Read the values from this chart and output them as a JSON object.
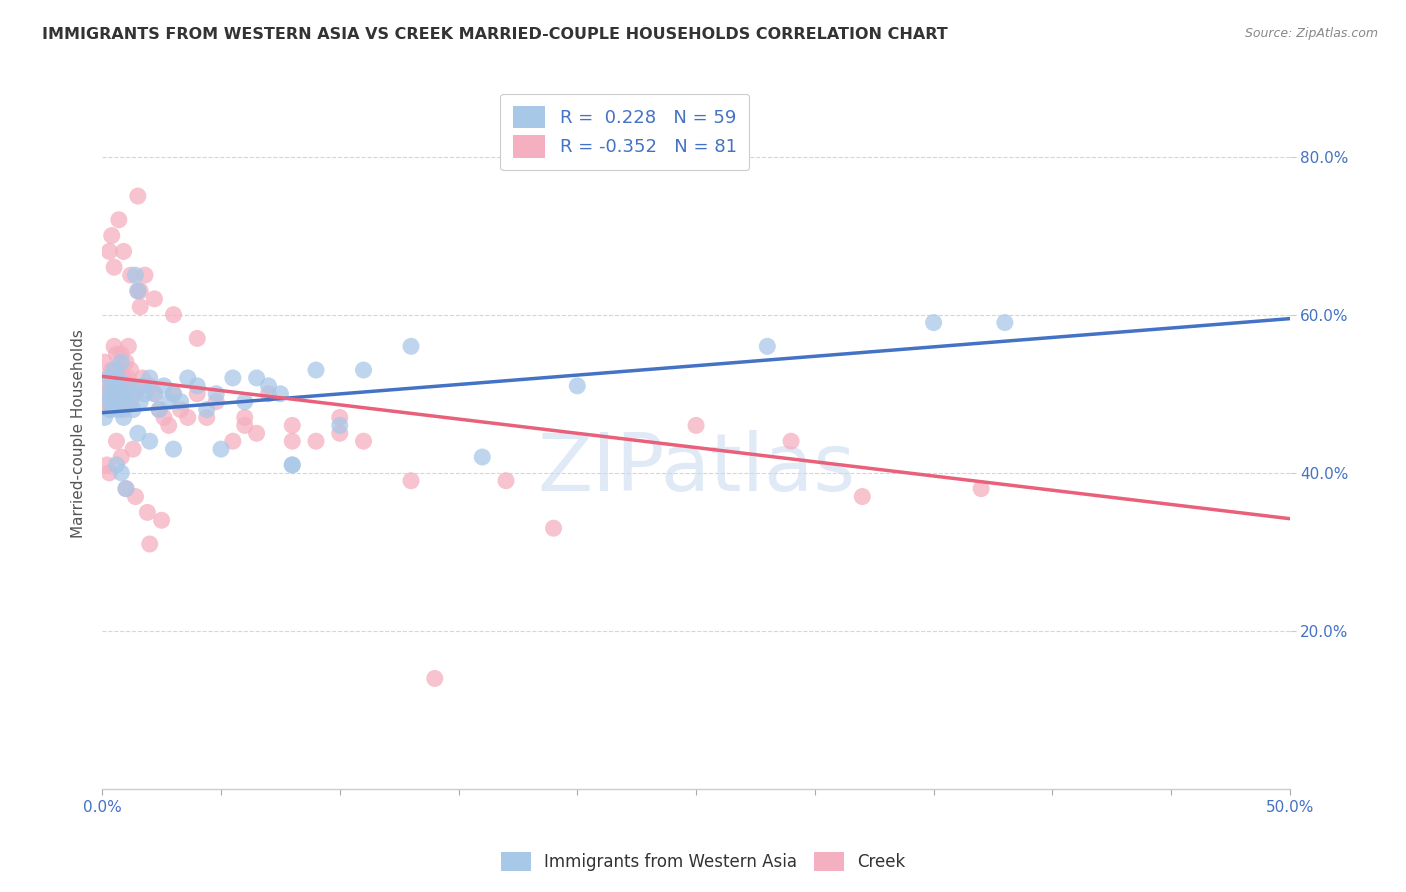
{
  "title": "IMMIGRANTS FROM WESTERN ASIA VS CREEK MARRIED-COUPLE HOUSEHOLDS CORRELATION CHART",
  "source": "Source: ZipAtlas.com",
  "ylabel": "Married-couple Households",
  "legend_r_n": [
    {
      "R": " 0.228",
      "N": "59"
    },
    {
      "R": "-0.352",
      "N": "81"
    }
  ],
  "blue_scatter_x": [
    0.001,
    0.002,
    0.003,
    0.003,
    0.004,
    0.004,
    0.005,
    0.005,
    0.006,
    0.006,
    0.007,
    0.007,
    0.008,
    0.008,
    0.009,
    0.01,
    0.01,
    0.011,
    0.012,
    0.013,
    0.014,
    0.015,
    0.016,
    0.017,
    0.018,
    0.02,
    0.022,
    0.024,
    0.026,
    0.028,
    0.03,
    0.033,
    0.036,
    0.04,
    0.044,
    0.048,
    0.055,
    0.06,
    0.065,
    0.07,
    0.075,
    0.08,
    0.09,
    0.1,
    0.11,
    0.13,
    0.16,
    0.2,
    0.28,
    0.35,
    0.006,
    0.008,
    0.01,
    0.015,
    0.02,
    0.03,
    0.05,
    0.08,
    0.38
  ],
  "blue_scatter_y": [
    0.47,
    0.5,
    0.49,
    0.52,
    0.51,
    0.48,
    0.5,
    0.53,
    0.49,
    0.51,
    0.48,
    0.52,
    0.5,
    0.54,
    0.47,
    0.5,
    0.49,
    0.51,
    0.5,
    0.48,
    0.65,
    0.63,
    0.49,
    0.51,
    0.5,
    0.52,
    0.5,
    0.48,
    0.51,
    0.49,
    0.5,
    0.49,
    0.52,
    0.51,
    0.48,
    0.5,
    0.52,
    0.49,
    0.52,
    0.51,
    0.5,
    0.41,
    0.53,
    0.46,
    0.53,
    0.56,
    0.42,
    0.51,
    0.56,
    0.59,
    0.41,
    0.4,
    0.38,
    0.45,
    0.44,
    0.43,
    0.43,
    0.41,
    0.59
  ],
  "pink_scatter_x": [
    0.001,
    0.001,
    0.002,
    0.002,
    0.003,
    0.003,
    0.004,
    0.004,
    0.005,
    0.005,
    0.006,
    0.006,
    0.007,
    0.007,
    0.008,
    0.008,
    0.009,
    0.009,
    0.01,
    0.01,
    0.011,
    0.011,
    0.012,
    0.012,
    0.013,
    0.014,
    0.015,
    0.016,
    0.017,
    0.018,
    0.02,
    0.022,
    0.024,
    0.026,
    0.028,
    0.03,
    0.033,
    0.036,
    0.04,
    0.044,
    0.048,
    0.055,
    0.06,
    0.065,
    0.07,
    0.08,
    0.09,
    0.1,
    0.11,
    0.13,
    0.003,
    0.004,
    0.005,
    0.007,
    0.009,
    0.012,
    0.016,
    0.022,
    0.03,
    0.04,
    0.06,
    0.08,
    0.1,
    0.013,
    0.008,
    0.006,
    0.003,
    0.002,
    0.01,
    0.014,
    0.019,
    0.025,
    0.015,
    0.02,
    0.17,
    0.32,
    0.37,
    0.25,
    0.29,
    0.19,
    0.14
  ],
  "pink_scatter_y": [
    0.5,
    0.54,
    0.52,
    0.49,
    0.51,
    0.48,
    0.53,
    0.5,
    0.56,
    0.52,
    0.55,
    0.5,
    0.49,
    0.53,
    0.51,
    0.55,
    0.52,
    0.48,
    0.5,
    0.54,
    0.52,
    0.56,
    0.49,
    0.53,
    0.51,
    0.5,
    0.63,
    0.61,
    0.52,
    0.65,
    0.51,
    0.5,
    0.48,
    0.47,
    0.46,
    0.5,
    0.48,
    0.47,
    0.5,
    0.47,
    0.49,
    0.44,
    0.47,
    0.45,
    0.5,
    0.46,
    0.44,
    0.45,
    0.44,
    0.39,
    0.68,
    0.7,
    0.66,
    0.72,
    0.68,
    0.65,
    0.63,
    0.62,
    0.6,
    0.57,
    0.46,
    0.44,
    0.47,
    0.43,
    0.42,
    0.44,
    0.4,
    0.41,
    0.38,
    0.37,
    0.35,
    0.34,
    0.75,
    0.31,
    0.39,
    0.37,
    0.38,
    0.46,
    0.44,
    0.33,
    0.14
  ],
  "blue_line_x": [
    0.0,
    0.5
  ],
  "blue_line_y": [
    0.476,
    0.595
  ],
  "pink_line_x": [
    0.0,
    0.5
  ],
  "pink_line_y": [
    0.522,
    0.342
  ],
  "xlim": [
    0.0,
    0.5
  ],
  "ylim": [
    0.0,
    0.9
  ],
  "ytick_vals": [
    0.2,
    0.4,
    0.6,
    0.8
  ],
  "ytick_labels": [
    "20.0%",
    "40.0%",
    "60.0%",
    "80.0%"
  ],
  "blue_color": "#a8c8e8",
  "pink_color": "#f4afc0",
  "blue_line_color": "#4472c4",
  "pink_line_color": "#e8607a",
  "watermark": "ZIPatlas",
  "background_color": "#ffffff",
  "grid_color": "#cccccc",
  "legend_label_blue": "Immigrants from Western Asia",
  "legend_label_pink": "Creek"
}
